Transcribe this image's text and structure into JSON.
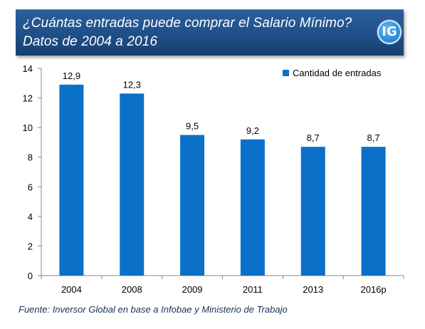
{
  "header": {
    "title_line1": "¿Cuántas entradas puede comprar el Salario Mínimo?",
    "title_line2": "Datos de 2004 a 2016",
    "badge": "IG"
  },
  "source": "Fuente: Inversor Global en base a Infobae y Ministerio de Trabajo",
  "colors": {
    "header_bg": "#1f4f88",
    "bar": "#0b70c8",
    "badge": "#2c8fdc"
  },
  "chart_data": {
    "type": "bar",
    "categories": [
      "2004",
      "2008",
      "2009",
      "2011",
      "2013",
      "2016p"
    ],
    "series": [
      {
        "name": "Cantidad de entradas",
        "values": [
          12.9,
          12.3,
          9.5,
          9.2,
          8.7,
          8.7
        ],
        "labels": [
          "12,9",
          "12,3",
          "9,5",
          "9,2",
          "8,7",
          "8,7"
        ]
      }
    ],
    "ylim": [
      0,
      14
    ],
    "yticks": [
      0,
      2,
      4,
      6,
      8,
      10,
      12,
      14
    ],
    "grid": false,
    "legend_position": "top-right"
  }
}
